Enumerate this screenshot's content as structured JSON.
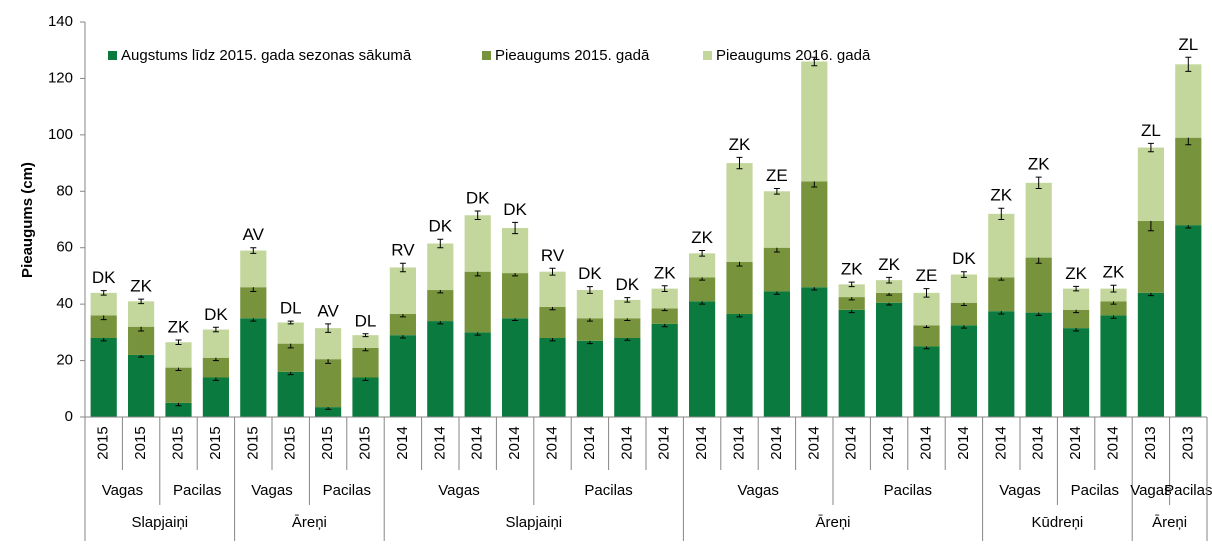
{
  "chart_data": {
    "type": "bar",
    "stacked": true,
    "ylabel": "Pieaugums (cm)",
    "ylim": [
      0,
      140
    ],
    "yticks": [
      0,
      20,
      40,
      60,
      80,
      100,
      120,
      140
    ],
    "categories": [
      "2015",
      "2015",
      "2015",
      "2015",
      "2015",
      "2015",
      "2015",
      "2015",
      "2014",
      "2014",
      "2014",
      "2014",
      "2014",
      "2014",
      "2014",
      "2014",
      "2014",
      "2014",
      "2014",
      "2014",
      "2014",
      "2014",
      "2014",
      "2014",
      "2014",
      "2014",
      "2014",
      "2014",
      "2013",
      "2013"
    ],
    "groups": [
      {
        "label": "Vagas",
        "span": 2
      },
      {
        "label": "Pacilas",
        "span": 2
      },
      {
        "label": "Vagas",
        "span": 2
      },
      {
        "label": "Pacilas",
        "span": 2
      },
      {
        "label": "Vagas",
        "span": 4
      },
      {
        "label": "Pacilas",
        "span": 4
      },
      {
        "label": "Vagas",
        "span": 4
      },
      {
        "label": "Pacilas",
        "span": 4
      },
      {
        "label": "Vagas",
        "span": 2
      },
      {
        "label": "Pacilas",
        "span": 2
      },
      {
        "label": "Vagas",
        "span": 1
      },
      {
        "label": "Pacilas",
        "span": 1
      }
    ],
    "supergroups": [
      {
        "label": "Slapjaiņi",
        "span": 4
      },
      {
        "label": "Āreņi",
        "span": 4
      },
      {
        "label": "Slapjaiņi",
        "span": 8
      },
      {
        "label": "Āreņi",
        "span": 8
      },
      {
        "label": "Kūdreņi",
        "span": 4
      },
      {
        "label": "Āreņi",
        "span": 2
      }
    ],
    "annotations": [
      "DK",
      "ZK",
      "ZK",
      "DK",
      "AV",
      "DL",
      "AV",
      "DL",
      "RV",
      "DK",
      "DK",
      "DK",
      "RV",
      "DK",
      "DK",
      "ZK",
      "ZK",
      "ZK",
      "ZE",
      null,
      "ZK",
      "ZK",
      "ZE",
      "DK",
      "ZK",
      "ZK",
      "ZK",
      "ZK",
      "ZL",
      "ZL"
    ],
    "legend": "top-left",
    "series": [
      {
        "name": "Augstums līdz 2015. gada sezonas sākumā",
        "color": "#0b7a3e",
        "values": [
          28,
          22,
          5,
          14,
          35,
          16,
          3.5,
          14,
          29,
          34,
          30,
          35,
          28,
          27,
          28,
          33,
          41,
          36.5,
          44.5,
          46,
          38,
          40.5,
          25,
          32.5,
          37.5,
          37,
          31.5,
          36,
          44,
          68
        ],
        "errors": [
          1,
          0.8,
          1,
          1,
          1,
          1,
          0.8,
          1,
          1,
          1,
          1,
          0.8,
          1,
          1,
          0.8,
          1,
          1,
          1,
          1,
          1,
          1,
          0.8,
          0.8,
          1,
          1,
          1,
          1,
          1,
          1,
          1
        ]
      },
      {
        "name": "Pieaugums 2015. gadā",
        "color": "#77933c",
        "values": [
          8,
          10,
          12.5,
          7,
          11,
          10,
          17,
          10.5,
          7.5,
          11,
          21.5,
          16,
          11,
          8,
          7,
          5.5,
          8.5,
          18.5,
          15.5,
          37.5,
          4.5,
          3.5,
          7.5,
          8,
          12,
          19.5,
          6.5,
          5,
          25.5,
          31
        ],
        "errors": [
          1.5,
          1.5,
          1,
          1,
          1.5,
          1.5,
          1.5,
          1,
          1,
          1,
          1.5,
          1,
          1,
          1,
          0.8,
          0.8,
          1,
          1.5,
          1.5,
          2,
          1,
          0.8,
          0.8,
          1,
          1,
          2,
          1,
          1,
          3.5,
          2.5
        ]
      },
      {
        "name": "Pieaugums 2016. gadā",
        "color": "#c3d69b",
        "values": [
          8,
          9,
          9,
          10,
          13,
          7.5,
          11,
          4.5,
          16.5,
          16.5,
          20,
          16,
          12.5,
          10,
          6.5,
          7,
          8.5,
          35,
          20,
          42.5,
          4.5,
          4.5,
          11.5,
          10,
          22.5,
          26.5,
          7.5,
          4.5,
          26,
          26
        ],
        "errors": [
          0.8,
          0.8,
          0.8,
          0.8,
          1,
          0.5,
          1.5,
          0.5,
          1.5,
          1.5,
          1.5,
          2,
          1.2,
          1.2,
          0.8,
          1,
          1,
          2,
          1,
          1.5,
          0.8,
          1,
          1.5,
          1,
          2,
          2,
          0.8,
          1.2,
          1.5,
          2.5
        ]
      }
    ]
  }
}
